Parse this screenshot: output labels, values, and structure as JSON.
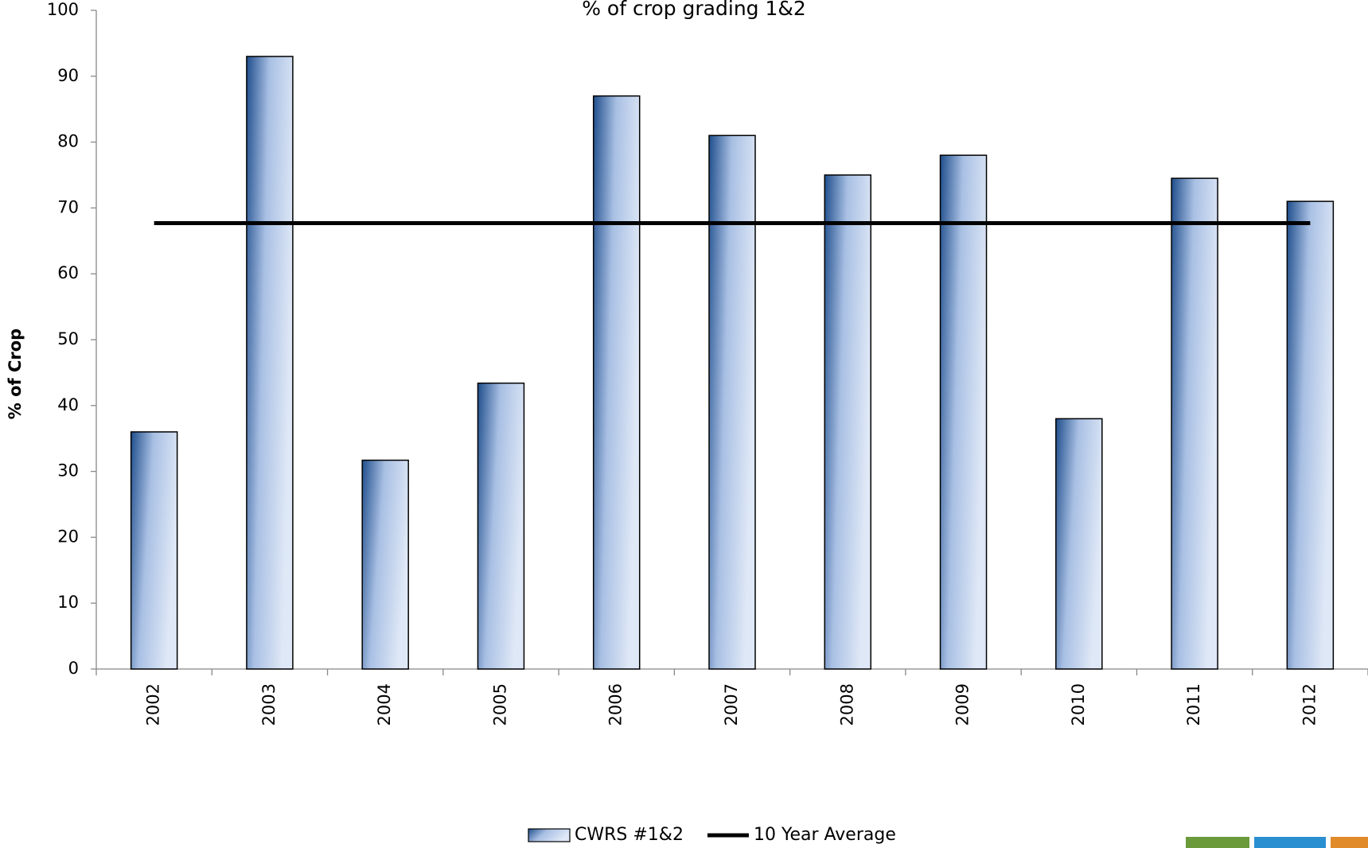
{
  "chart_data": {
    "type": "bar",
    "title": "% of crop grading 1&2",
    "y_label": "% of Crop",
    "categories": [
      "2002",
      "2003",
      "2004",
      "2005",
      "2006",
      "2007",
      "2008",
      "2009",
      "2010",
      "2011",
      "2012"
    ],
    "series": [
      {
        "name": "CWRS #1&2",
        "type": "bar",
        "color": "#1f4e8c",
        "values": [
          36,
          93,
          31.7,
          43.4,
          87,
          81,
          75,
          78,
          38,
          74.5,
          71
        ]
      },
      {
        "name": "10 Year Average",
        "type": "line",
        "color": "#000000",
        "values": [
          67.7,
          67.7,
          67.7,
          67.7,
          67.7,
          67.7,
          67.7,
          67.7,
          67.7,
          67.7,
          67.7
        ]
      }
    ],
    "ylim": [
      0,
      100
    ],
    "yticks": [
      0,
      10,
      20,
      30,
      40,
      50,
      60,
      70,
      80,
      90,
      100
    ],
    "grid": false
  }
}
